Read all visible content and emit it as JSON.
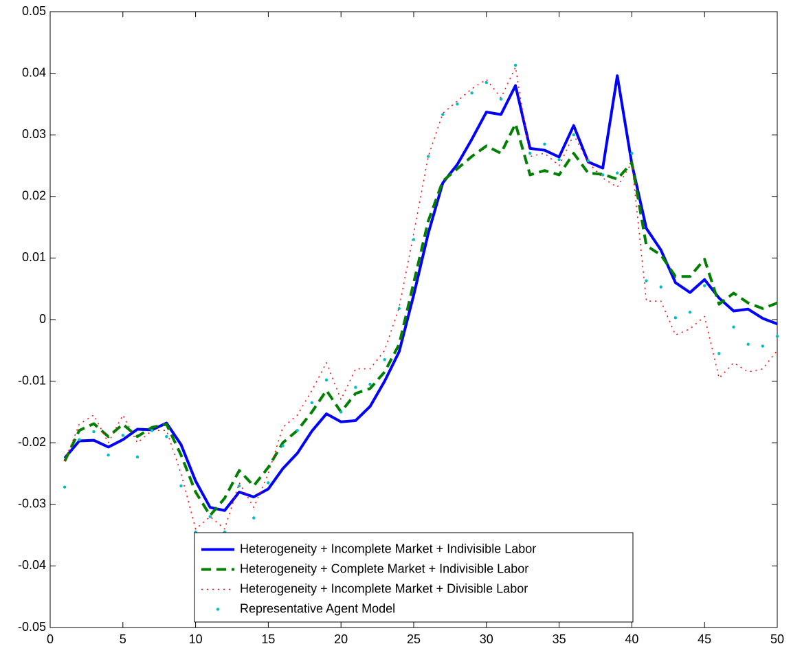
{
  "chart_data": {
    "type": "line",
    "x": [
      1,
      2,
      3,
      4,
      5,
      6,
      7,
      8,
      9,
      10,
      11,
      12,
      13,
      14,
      15,
      16,
      17,
      18,
      19,
      20,
      21,
      22,
      23,
      24,
      25,
      26,
      27,
      28,
      29,
      30,
      31,
      32,
      33,
      34,
      35,
      36,
      37,
      38,
      39,
      40,
      41,
      42,
      43,
      44,
      45,
      46,
      47,
      48,
      49,
      50
    ],
    "xlim": [
      0,
      50
    ],
    "xticks": [
      0,
      5,
      10,
      15,
      20,
      25,
      30,
      35,
      40,
      45,
      50
    ],
    "ylim": [
      -0.05,
      0.05
    ],
    "yticks": [
      -0.05,
      -0.04,
      -0.03,
      -0.02,
      -0.01,
      0,
      0.01,
      0.02,
      0.03,
      0.04,
      0.05
    ],
    "legend": "lower center",
    "series": [
      {
        "name": "Heterogeneity + Incomplete Market + Indivisible Labor",
        "color": "#0000ff",
        "style": "solid",
        "values": [
          -0.0225,
          -0.0197,
          -0.0196,
          -0.0207,
          -0.0195,
          -0.0178,
          -0.0179,
          -0.0168,
          -0.0203,
          -0.0262,
          -0.0305,
          -0.031,
          -0.028,
          -0.0288,
          -0.0275,
          -0.0242,
          -0.0217,
          -0.0181,
          -0.0153,
          -0.0166,
          -0.0164,
          -0.0141,
          -0.01,
          -0.0052,
          0.004,
          0.014,
          0.0222,
          0.0252,
          0.0293,
          0.0337,
          0.0333,
          0.038,
          0.0278,
          0.0275,
          0.0264,
          0.0315,
          0.0256,
          0.0246,
          0.0396,
          0.0253,
          0.0148,
          0.0113,
          0.006,
          0.0044,
          0.0065,
          0.0035,
          0.0014,
          0.0017,
          0.0002,
          -0.0007
        ]
      },
      {
        "name": "Heterogeneity + Complete Market + Indivisible Labor",
        "color": "#007f00",
        "style": "dashed",
        "values": [
          -0.023,
          -0.018,
          -0.0169,
          -0.019,
          -0.017,
          -0.019,
          -0.0175,
          -0.017,
          -0.022,
          -0.028,
          -0.0318,
          -0.029,
          -0.0245,
          -0.027,
          -0.024,
          -0.02,
          -0.018,
          -0.015,
          -0.0115,
          -0.015,
          -0.012,
          -0.0112,
          -0.0085,
          -0.004,
          0.006,
          0.016,
          0.0225,
          0.0245,
          0.0265,
          0.0282,
          0.027,
          0.0318,
          0.0235,
          0.0242,
          0.0235,
          0.027,
          0.0238,
          0.0236,
          0.0228,
          0.0255,
          0.012,
          0.0105,
          0.007,
          0.007,
          0.0098,
          0.0025,
          0.0043,
          0.0027,
          0.0018,
          0.0027
        ]
      },
      {
        "name": "Heterogeneity + Incomplete Market + Divisible Labor",
        "color": "#ff0000",
        "style": "dotted",
        "values": [
          -0.023,
          -0.017,
          -0.0155,
          -0.02,
          -0.0155,
          -0.02,
          -0.018,
          -0.018,
          -0.025,
          -0.034,
          -0.032,
          -0.034,
          -0.0265,
          -0.0305,
          -0.025,
          -0.0175,
          -0.0155,
          -0.0115,
          -0.007,
          -0.013,
          -0.008,
          -0.008,
          -0.005,
          0.002,
          0.014,
          0.0265,
          0.0335,
          0.0355,
          0.0375,
          0.039,
          0.036,
          0.041,
          0.0265,
          0.027,
          0.025,
          0.03,
          0.0255,
          0.023,
          0.0215,
          0.0255,
          0.003,
          0.003,
          -0.0025,
          -0.0015,
          0.0005,
          -0.0095,
          -0.007,
          -0.0085,
          -0.008,
          -0.005
        ]
      },
      {
        "name": "Representative Agent Model",
        "color": "#00bfbf",
        "style": "markers",
        "values": [
          -0.0272,
          -0.0195,
          -0.0182,
          -0.022,
          -0.0188,
          -0.0223,
          -0.018,
          -0.019,
          -0.027,
          -0.0345,
          -0.032,
          -0.0345,
          -0.027,
          -0.0322,
          -0.0265,
          -0.0205,
          -0.018,
          -0.0135,
          -0.0098,
          -0.015,
          -0.011,
          -0.0105,
          -0.0065,
          0.0018,
          0.013,
          0.0265,
          0.0333,
          0.035,
          0.0368,
          0.0385,
          0.0358,
          0.0413,
          0.027,
          0.0285,
          0.026,
          0.03,
          0.0258,
          0.0235,
          0.0238,
          0.027,
          0.0063,
          0.0053,
          0.0003,
          0.0012,
          0.0055,
          -0.0055,
          -0.0012,
          -0.004,
          -0.0043,
          -0.0027
        ]
      }
    ]
  }
}
